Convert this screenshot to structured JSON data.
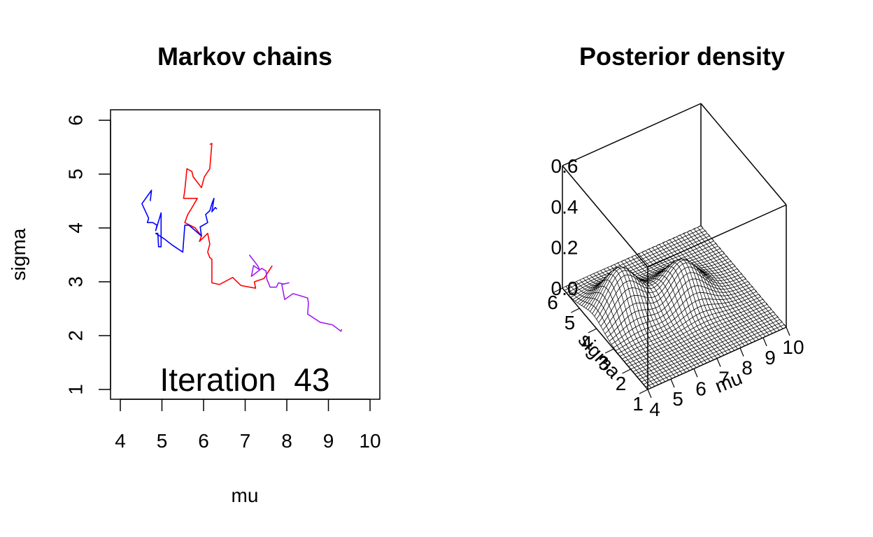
{
  "chart_data": [
    {
      "type": "line",
      "title": "Markov chains",
      "xlabel": "mu",
      "ylabel": "sigma",
      "xlim": [
        4,
        10
      ],
      "ylim": [
        1,
        6
      ],
      "x_ticks": [
        "4",
        "5",
        "6",
        "7",
        "8",
        "9",
        "10"
      ],
      "y_ticks": [
        "1",
        "2",
        "3",
        "4",
        "5",
        "6"
      ],
      "grid": false,
      "legend": "none",
      "annotation": {
        "text": "Iteration  43",
        "position": "bottom-center"
      },
      "series": [
        {
          "color": "#ff0000",
          "points": [
            [
              6.15,
              5.55
            ],
            [
              6.2,
              5.57
            ],
            [
              6.15,
              5.1
            ],
            [
              6.02,
              4.95
            ],
            [
              5.95,
              4.75
            ],
            [
              5.85,
              4.85
            ],
            [
              5.75,
              4.95
            ],
            [
              5.72,
              5.05
            ],
            [
              5.6,
              5.1
            ],
            [
              5.55,
              4.7
            ],
            [
              5.52,
              4.55
            ],
            [
              5.65,
              4.55
            ],
            [
              5.85,
              4.55
            ],
            [
              5.7,
              4.35
            ],
            [
              5.62,
              4.25
            ],
            [
              5.55,
              4.1
            ],
            [
              5.8,
              4.0
            ],
            [
              5.95,
              3.85
            ],
            [
              5.9,
              3.75
            ],
            [
              6.1,
              3.9
            ],
            [
              6.15,
              3.7
            ],
            [
              6.1,
              3.55
            ],
            [
              6.15,
              3.45
            ],
            [
              6.2,
              3.42
            ],
            [
              6.2,
              2.98
            ],
            [
              6.38,
              2.95
            ],
            [
              6.7,
              3.08
            ],
            [
              6.9,
              2.93
            ],
            [
              7.25,
              2.88
            ],
            [
              7.22,
              3.0
            ],
            [
              7.45,
              3.06
            ],
            [
              7.65,
              3.3
            ]
          ]
        },
        {
          "color": "#0000ff",
          "points": [
            [
              4.72,
              4.5
            ],
            [
              4.75,
              4.7
            ],
            [
              4.52,
              4.45
            ],
            [
              4.68,
              4.18
            ],
            [
              4.65,
              4.1
            ],
            [
              4.78,
              4.1
            ],
            [
              4.88,
              4.05
            ],
            [
              4.85,
              3.95
            ],
            [
              4.98,
              4.28
            ],
            [
              4.98,
              3.65
            ],
            [
              4.92,
              3.65
            ],
            [
              4.9,
              3.9
            ],
            [
              4.85,
              3.9
            ],
            [
              5.05,
              3.8
            ],
            [
              5.25,
              3.68
            ],
            [
              5.5,
              3.55
            ],
            [
              5.55,
              4.05
            ],
            [
              5.65,
              4.05
            ],
            [
              5.95,
              3.85
            ],
            [
              5.92,
              4.02
            ],
            [
              6.1,
              4.1
            ],
            [
              6.05,
              4.25
            ],
            [
              6.15,
              4.32
            ],
            [
              6.2,
              4.45
            ],
            [
              6.25,
              4.55
            ],
            [
              6.2,
              4.3
            ],
            [
              6.28,
              4.38
            ],
            [
              6.32,
              4.35
            ]
          ]
        },
        {
          "color": "#a020f0",
          "points": [
            [
              7.1,
              3.5
            ],
            [
              7.15,
              3.45
            ],
            [
              7.3,
              3.3
            ],
            [
              7.35,
              3.22
            ],
            [
              7.2,
              3.3
            ],
            [
              7.15,
              3.1
            ],
            [
              7.4,
              3.25
            ],
            [
              7.5,
              3.2
            ],
            [
              7.52,
              3.05
            ],
            [
              7.6,
              2.9
            ],
            [
              7.75,
              2.9
            ],
            [
              7.8,
              2.98
            ],
            [
              7.92,
              2.96
            ],
            [
              8.05,
              2.98
            ],
            [
              7.88,
              2.95
            ],
            [
              7.95,
              2.67
            ],
            [
              8.15,
              2.78
            ],
            [
              8.5,
              2.7
            ],
            [
              8.52,
              2.6
            ],
            [
              8.5,
              2.4
            ],
            [
              8.8,
              2.25
            ],
            [
              9.1,
              2.2
            ],
            [
              9.3,
              2.08
            ],
            [
              9.32,
              2.12
            ]
          ]
        }
      ]
    },
    {
      "type": "surface",
      "title": "Posterior density",
      "xlabel": "mu",
      "ylabel": "sigma",
      "zlabel": "",
      "xlim": [
        4,
        10
      ],
      "ylim": [
        1,
        6
      ],
      "zlim": [
        0,
        0.6
      ],
      "x_ticks": [
        "4",
        "5",
        "6",
        "7",
        "8",
        "9",
        "10"
      ],
      "y_ticks": [
        "1",
        "2",
        "3",
        "4",
        "5",
        "6"
      ],
      "z_ticks": [
        "0.0",
        "0.2",
        "0.4",
        "0.6"
      ],
      "peaks": [
        {
          "mu": 5.2,
          "sigma": 4.2,
          "density": 0.21
        },
        {
          "mu": 7.5,
          "sigma": 3.7,
          "density": 0.18
        }
      ],
      "surface_color": "#ffffff",
      "mesh_color": "#000000"
    }
  ]
}
